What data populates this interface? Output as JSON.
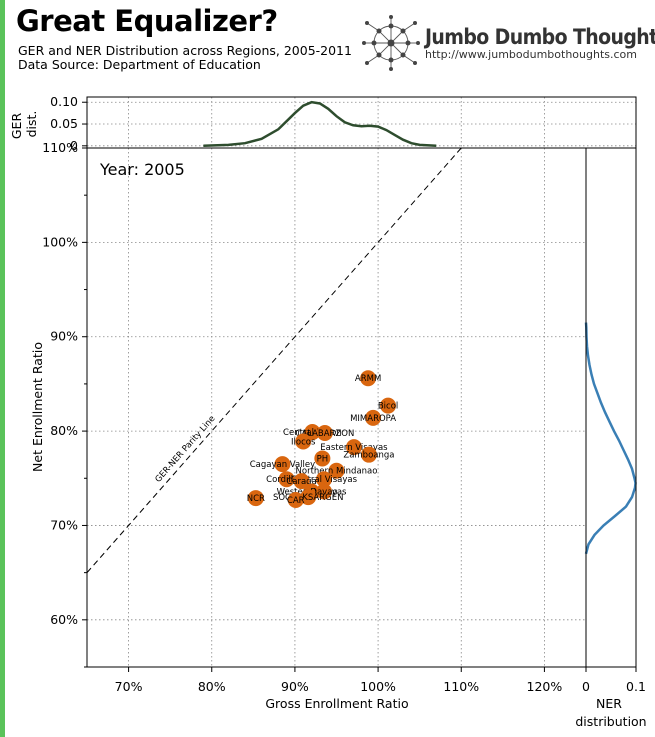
{
  "header": {
    "title": "Great Equalizer?",
    "subtitle": "GER and NER Distribution across Regions, 2005-2011",
    "source": "Data Source: Department of Education"
  },
  "brand": {
    "name": "Jumbo Dumbo Thoughts",
    "url": "http://www.jumbodumbothoughts.com",
    "logo_icon": "network-logo-icon"
  },
  "colors": {
    "accent_bar": "#5ac35a",
    "point": "#d9660f",
    "ger_density": "#2e4d2e",
    "ner_density": "#3a7fb5"
  },
  "chart_data": {
    "type": "scatter",
    "year_label": "Year: 2005",
    "xlabel": "Gross Enrollment Ratio",
    "ylabel": "Net Enrollment Ratio",
    "xlim": [
      65,
      125
    ],
    "ylim": [
      55,
      110
    ],
    "xticks": [
      70,
      80,
      90,
      100,
      110,
      120
    ],
    "xtick_labels": [
      "70%",
      "80%",
      "90%",
      "100%",
      "110%",
      "120%"
    ],
    "yticks": [
      60,
      70,
      80,
      90,
      100,
      110
    ],
    "ytick_labels": [
      "60%",
      "70%",
      "80%",
      "90%",
      "100%",
      "110%"
    ],
    "grid": true,
    "parity_line": {
      "label": "GER-NER Parity Line",
      "from": [
        65,
        65
      ],
      "to": [
        110,
        110
      ]
    },
    "points": [
      {
        "label": "ARMM",
        "x": 98.8,
        "y": 85.6
      },
      {
        "label": "Bicol",
        "x": 101.2,
        "y": 82.7
      },
      {
        "label": "MIMAROPA",
        "x": 99.4,
        "y": 81.4
      },
      {
        "label": "Central Luzon",
        "x": 92.1,
        "y": 79.9
      },
      {
        "label": "CALABARZON",
        "x": 93.6,
        "y": 79.8
      },
      {
        "label": "Ilocos",
        "x": 91.0,
        "y": 78.9
      },
      {
        "label": "Eastern Visayas",
        "x": 97.1,
        "y": 78.3
      },
      {
        "label": "Zamboanga",
        "x": 98.9,
        "y": 77.5
      },
      {
        "label": "PH",
        "x": 93.3,
        "y": 77.1
      },
      {
        "label": "Cagayan Valley",
        "x": 88.5,
        "y": 76.5
      },
      {
        "label": "Northern Mindanao",
        "x": 95.0,
        "y": 75.8
      },
      {
        "label": "Cordillera",
        "x": 89.0,
        "y": 74.9
      },
      {
        "label": "Central Visayas",
        "x": 93.5,
        "y": 74.9
      },
      {
        "label": "Caraga",
        "x": 90.8,
        "y": 74.7
      },
      {
        "label": "Western Visayas",
        "x": 92.0,
        "y": 73.6
      },
      {
        "label": "Davao",
        "x": 93.5,
        "y": 73.6
      },
      {
        "label": "SOCCSKSARGEN",
        "x": 91.6,
        "y": 73.0
      },
      {
        "label": "NCR",
        "x": 85.3,
        "y": 72.9
      },
      {
        "label": "CAR",
        "x": 90.1,
        "y": 72.7
      }
    ],
    "ger_density": {
      "ylabel": "GER dist.",
      "yticks": [
        0,
        0.05,
        0.1
      ],
      "ytick_labels": [
        "0",
        "0.05",
        "0.10"
      ],
      "ylim": [
        -0.005,
        0.112
      ],
      "x": [
        79,
        82,
        84,
        86,
        88,
        90,
        91,
        92,
        93,
        94,
        95,
        96,
        97,
        98,
        99,
        100,
        101,
        102,
        103,
        104,
        105,
        107
      ],
      "y": [
        0,
        0.002,
        0.006,
        0.016,
        0.038,
        0.075,
        0.092,
        0.1,
        0.097,
        0.085,
        0.068,
        0.054,
        0.047,
        0.045,
        0.046,
        0.044,
        0.036,
        0.025,
        0.014,
        0.006,
        0.002,
        0
      ]
    },
    "ner_density": {
      "xlabel": "NER distribution",
      "xticks": [
        0,
        0.1
      ],
      "xtick_labels": [
        "0",
        "0.1"
      ],
      "xlim": [
        0,
        0.1
      ],
      "y": [
        67,
        68,
        69,
        70,
        71,
        72,
        73,
        74,
        74.5,
        75,
        76,
        77,
        78,
        79,
        80,
        81,
        82,
        83,
        84,
        85,
        86,
        87,
        88,
        89,
        90,
        91,
        91.5
      ],
      "x": [
        0,
        0.005,
        0.017,
        0.035,
        0.058,
        0.08,
        0.092,
        0.098,
        0.099,
        0.097,
        0.092,
        0.084,
        0.075,
        0.066,
        0.056,
        0.047,
        0.038,
        0.03,
        0.023,
        0.016,
        0.011,
        0.007,
        0.004,
        0.002,
        0.001,
        0.0005,
        0
      ]
    }
  }
}
